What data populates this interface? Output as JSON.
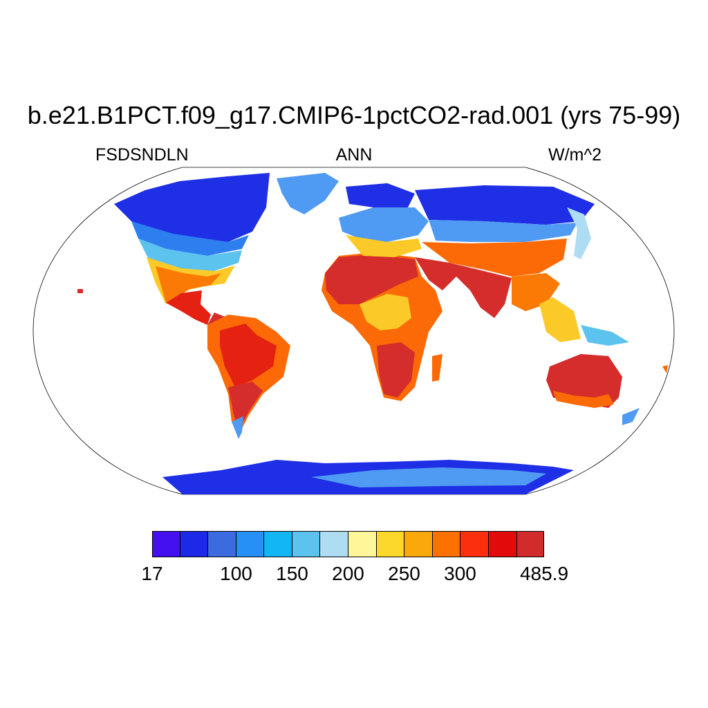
{
  "title": "b.e21.B1PCT.f09_g17.CMIP6-1pctCO2-rad.001 (yrs 75-99)",
  "left_label": "FSDSNDLN",
  "center_label": "ANN",
  "right_label": "W/m^2",
  "colorbar": {
    "colors": [
      "#4411ee",
      "#1c2ae8",
      "#3c6be0",
      "#2690f6",
      "#12b6f5",
      "#5cc3ef",
      "#aedcf3",
      "#fff599",
      "#fcd82c",
      "#fba80b",
      "#fb7100",
      "#fb2e0e",
      "#e20a0a",
      "#d12b2b"
    ],
    "labels": [
      "17",
      "100",
      "150",
      "200",
      "250",
      "300",
      "485.9"
    ]
  },
  "colors": {
    "ocean": "#ffffff",
    "tropics": "#d52d2b",
    "subtropics": "#fb6a06",
    "midlat": "#fcca28",
    "highlat": "#4f9af2",
    "polar": "#1f2fe6",
    "coastline": "#000000"
  }
}
